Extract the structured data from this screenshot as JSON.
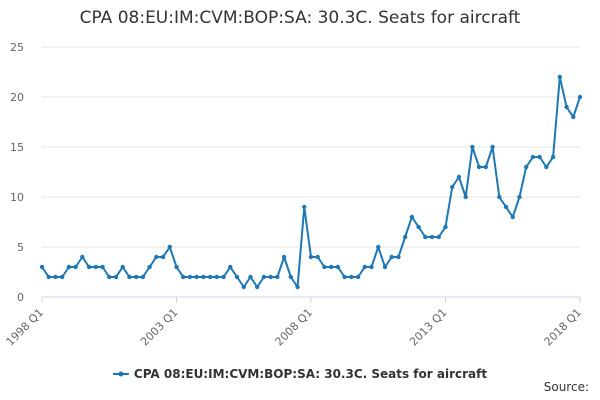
{
  "chart_data": {
    "type": "line",
    "title": "CPA 08:EU:IM:CVM:BOP:SA: 30.3C. Seats for aircraft",
    "xlabel": "",
    "ylabel": "",
    "ylim": [
      0,
      25
    ],
    "yticks": [
      0,
      5,
      10,
      15,
      20,
      25
    ],
    "xticks": [
      "1998 Q1",
      "2003 Q1",
      "2008 Q1",
      "2013 Q1",
      "2018 Q1"
    ],
    "grid": true,
    "legend_position": "bottom",
    "x": [
      "1998 Q1",
      "1998 Q2",
      "1998 Q3",
      "1998 Q4",
      "1999 Q1",
      "1999 Q2",
      "1999 Q3",
      "1999 Q4",
      "2000 Q1",
      "2000 Q2",
      "2000 Q3",
      "2000 Q4",
      "2001 Q1",
      "2001 Q2",
      "2001 Q3",
      "2001 Q4",
      "2002 Q1",
      "2002 Q2",
      "2002 Q3",
      "2002 Q4",
      "2003 Q1",
      "2003 Q2",
      "2003 Q3",
      "2003 Q4",
      "2004 Q1",
      "2004 Q2",
      "2004 Q3",
      "2004 Q4",
      "2005 Q1",
      "2005 Q2",
      "2005 Q3",
      "2005 Q4",
      "2006 Q1",
      "2006 Q2",
      "2006 Q3",
      "2006 Q4",
      "2007 Q1",
      "2007 Q2",
      "2007 Q3",
      "2007 Q4",
      "2008 Q1",
      "2008 Q2",
      "2008 Q3",
      "2008 Q4",
      "2009 Q1",
      "2009 Q2",
      "2009 Q3",
      "2009 Q4",
      "2010 Q1",
      "2010 Q2",
      "2010 Q3",
      "2010 Q4",
      "2011 Q1",
      "2011 Q2",
      "2011 Q3",
      "2011 Q4",
      "2012 Q1",
      "2012 Q2",
      "2012 Q3",
      "2012 Q4",
      "2013 Q1",
      "2013 Q2",
      "2013 Q3",
      "2013 Q4",
      "2014 Q1",
      "2014 Q2",
      "2014 Q3",
      "2014 Q4",
      "2015 Q1",
      "2015 Q2",
      "2015 Q3",
      "2015 Q4",
      "2016 Q1",
      "2016 Q2",
      "2016 Q3",
      "2016 Q4",
      "2017 Q1",
      "2017 Q2",
      "2017 Q3",
      "2017 Q4",
      "2018 Q1"
    ],
    "series": [
      {
        "name": "CPA 08:EU:IM:CVM:BOP:SA: 30.3C. Seats for aircraft",
        "color": "#1f77b4",
        "values": [
          3,
          2,
          2,
          2,
          3,
          3,
          4,
          3,
          3,
          3,
          2,
          2,
          3,
          2,
          2,
          2,
          3,
          4,
          4,
          5,
          3,
          2,
          2,
          2,
          2,
          2,
          2,
          2,
          3,
          2,
          1,
          2,
          1,
          2,
          2,
          2,
          4,
          2,
          1,
          9,
          4,
          4,
          3,
          3,
          3,
          2,
          2,
          2,
          3,
          3,
          5,
          3,
          4,
          4,
          6,
          8,
          7,
          6,
          6,
          6,
          7,
          11,
          12,
          10,
          15,
          13,
          13,
          15,
          10,
          9,
          8,
          10,
          13,
          14,
          14,
          13,
          14,
          22,
          19,
          18,
          20
        ]
      }
    ]
  },
  "footer": {
    "source_label": "Source:"
  }
}
